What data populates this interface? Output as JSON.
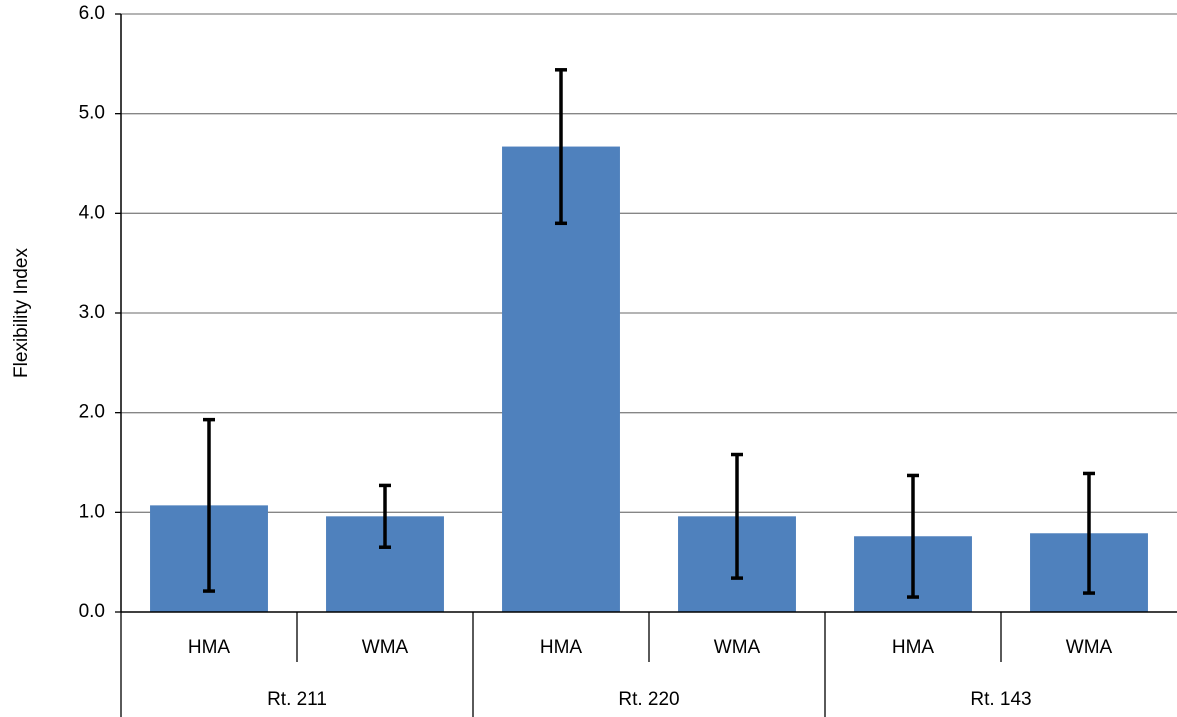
{
  "chart_data": {
    "type": "bar",
    "y_label": "Flexibility Index",
    "categories": [
      "HMA",
      "WMA",
      "HMA",
      "WMA",
      "HMA",
      "WMA"
    ],
    "groups": [
      "Rt. 211",
      "Rt. 220",
      "Rt. 143"
    ],
    "values": [
      1.07,
      0.96,
      4.67,
      0.96,
      0.76,
      0.79
    ],
    "errors": [
      0.86,
      0.31,
      0.77,
      0.62,
      0.61,
      0.6
    ],
    "color": "#4f81bd",
    "ylim": [
      0,
      6
    ],
    "yticks": [
      {
        "value": 0,
        "label": "0.0"
      },
      {
        "value": 1,
        "label": "1.0"
      },
      {
        "value": 2,
        "label": "2.0"
      },
      {
        "value": 3,
        "label": "3.0"
      },
      {
        "value": 4,
        "label": "4.0"
      },
      {
        "value": 5,
        "label": "5.0"
      },
      {
        "value": 6,
        "label": "6.0"
      }
    ],
    "grid": true
  }
}
